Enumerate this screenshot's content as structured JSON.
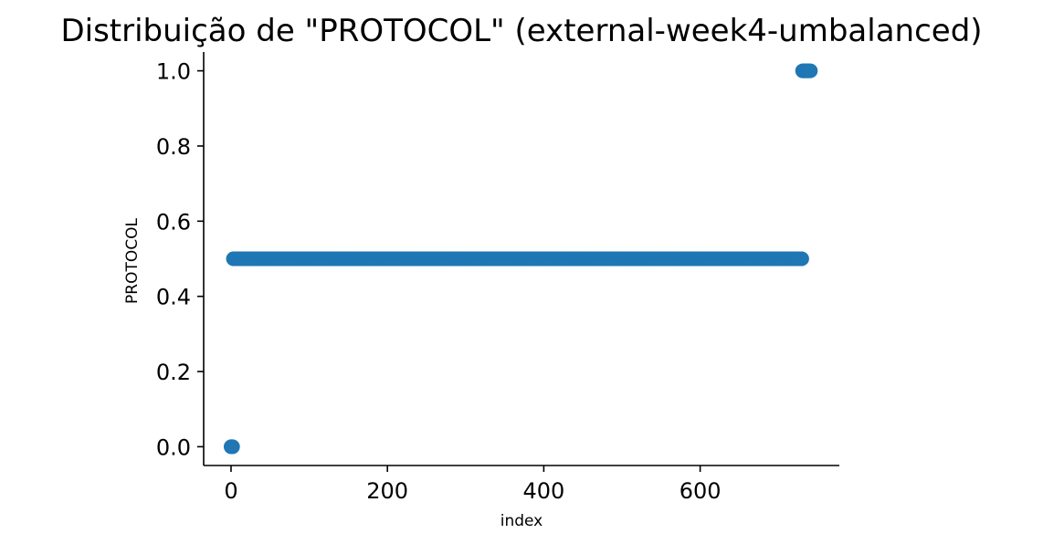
{
  "chart_data": {
    "type": "scatter",
    "title": "Distribuição de \"PROTOCOL\" (external-week4-umbalanced)",
    "xlabel": "index",
    "ylabel": "PROTOCOL",
    "xlim": [
      -35,
      778
    ],
    "ylim": [
      -0.05,
      1.05
    ],
    "xticks": [
      0,
      200,
      400,
      600
    ],
    "yticks": [
      0.0,
      0.2,
      0.4,
      0.6,
      0.8,
      1.0
    ],
    "xtick_labels": [
      "0",
      "200",
      "400",
      "600"
    ],
    "ytick_labels": [
      "0.0",
      "0.2",
      "0.4",
      "0.6",
      "0.8",
      "1.0"
    ],
    "grid": false,
    "series": [
      {
        "color": "#1f77b4",
        "runs": [
          {
            "x_start": 0,
            "x_end": 2,
            "y": 0.0
          },
          {
            "x_start": 3,
            "x_end": 730,
            "y": 0.5
          },
          {
            "x_start": 731,
            "x_end": 741,
            "y": 1.0
          }
        ]
      }
    ]
  }
}
